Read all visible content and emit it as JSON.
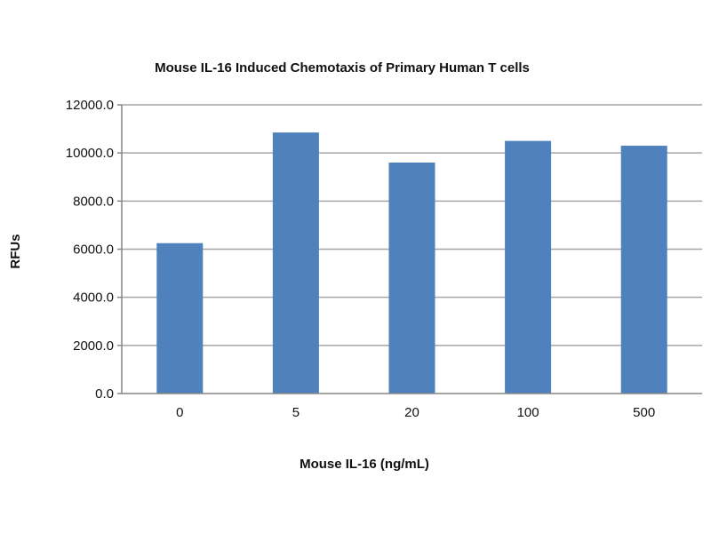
{
  "chart_data": {
    "type": "bar",
    "title": "Mouse IL-16 Induced Chemotaxis of Primary Human T cells",
    "xlabel": "Mouse IL-16 (ng/mL)",
    "ylabel": "RFUs",
    "categories": [
      "0",
      "5",
      "20",
      "100",
      "500"
    ],
    "values": [
      6250,
      10850,
      9600,
      10500,
      10300
    ],
    "ylim": [
      0,
      12000
    ],
    "yticks": [
      "0.0",
      "2000.0",
      "4000.0",
      "6000.0",
      "8000.0",
      "10000.0",
      "12000.0"
    ],
    "grid": true,
    "legend": "none",
    "bar_color": "#4f81bd",
    "grid_color": "#a6a6a6"
  }
}
